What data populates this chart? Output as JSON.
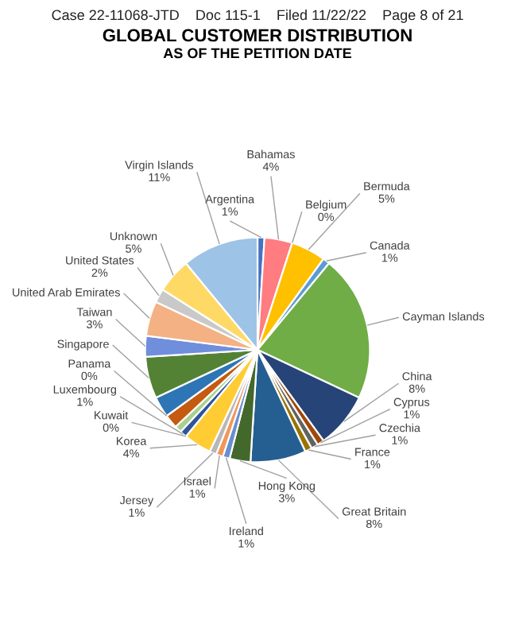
{
  "chart_data": {
    "type": "pie",
    "title": "GLOBAL CUSTOMER DISTRIBUTION",
    "subtitle": "AS OF THE PETITION DATE",
    "annotations": [
      "Case 22-11068-JTD    Doc 115-1    Filed 11/22/22    Page 8 of 21"
    ],
    "categories": [
      "Argentina",
      "Bahamas",
      "Belgium",
      "Bermuda",
      "Canada",
      "Cayman Islands",
      "China",
      "Cyprus",
      "Czechia",
      "France",
      "Great Britain",
      "Hong Kong",
      "Ireland",
      "Israel",
      "Jersey",
      "Korea",
      "Kuwait",
      "Luxembourg",
      null,
      null,
      "Panama",
      null,
      "Singapore",
      "Taiwan",
      "United Arab Emirates",
      "United States",
      "Unknown",
      "Virgin Islands"
    ],
    "values": [
      1,
      4,
      0,
      5,
      1,
      21,
      8,
      1,
      1,
      1,
      8,
      3,
      1,
      1,
      1,
      4,
      0,
      1,
      1,
      2,
      0,
      3,
      6,
      3,
      5,
      2,
      5,
      11
    ],
    "value_labels": [
      "1%",
      "4%",
      "0%",
      "5%",
      "1%",
      null,
      "8%",
      "1%",
      "1%",
      "1%",
      "8%",
      "3%",
      "1%",
      "1%",
      "1%",
      "4%",
      "0%",
      "1%",
      null,
      null,
      "0%",
      null,
      null,
      "3%",
      null,
      "2%",
      "5%",
      "11%"
    ],
    "colors": [
      "#4472c4",
      "#ff7c80",
      "#a5a5a5",
      "#ffc000",
      "#5b9bd5",
      "#70ad47",
      "#264478",
      "#9e480e",
      "#636363",
      "#997300",
      "#255e91",
      "#43682b",
      "#698ed0",
      "#f1975a",
      "#b7b7b7",
      "#ffcd33",
      "#8cc168",
      "#2f5597",
      "#a9d18e",
      "#c55a11",
      "#7f7f7f",
      "#2e75b6",
      "#548235",
      "#6f8fdc",
      "#f4b183",
      "#c9c9c9",
      "#ffd966",
      "#9dc3e6"
    ],
    "legend": false
  }
}
